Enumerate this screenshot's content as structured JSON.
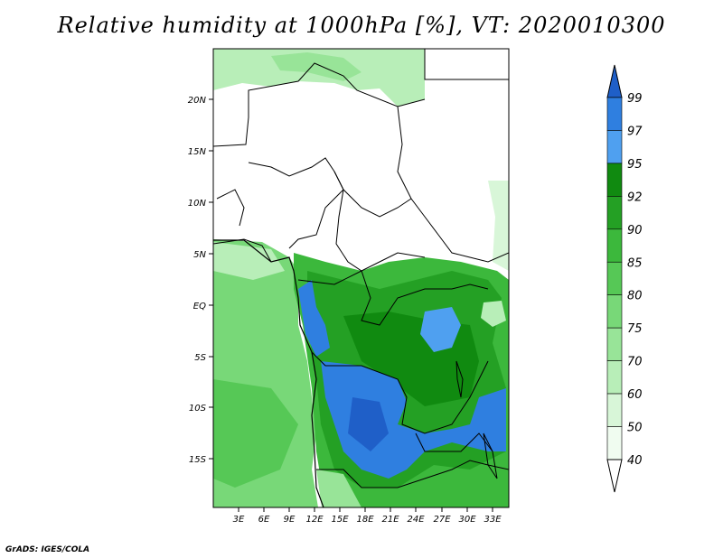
{
  "title": "Relative humidity at 1000hPa [%], VT: 2020010300",
  "credit": "GrADS: IGES/COLA",
  "map": {
    "lat_ticks": [
      "20N",
      "15N",
      "10N",
      "5N",
      "EQ",
      "5S",
      "10S",
      "15S"
    ],
    "lon_ticks": [
      "3E",
      "6E",
      "9E",
      "12E",
      "15E",
      "18E",
      "21E",
      "24E",
      "27E",
      "30E",
      "33E"
    ]
  },
  "colorbar": {
    "labels": [
      "99",
      "97",
      "95",
      "92",
      "90",
      "85",
      "80",
      "75",
      "70",
      "60",
      "50",
      "40"
    ],
    "colors": [
      "#1f5fc8",
      "#2f7fe0",
      "#4fa0f0",
      "#108a10",
      "#24a024",
      "#3cb83c",
      "#56c856",
      "#78d878",
      "#98e498",
      "#b8eeb8",
      "#d8f6d8",
      "#f0fcf0",
      "#ffffff"
    ]
  }
}
